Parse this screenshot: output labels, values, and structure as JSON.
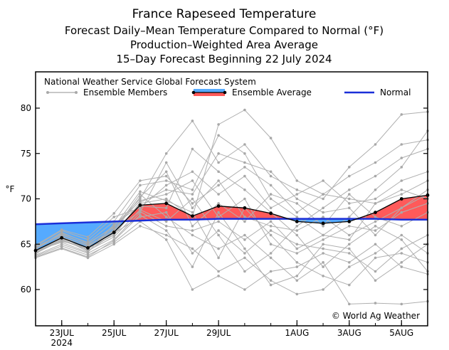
{
  "chart_data": {
    "type": "line",
    "title": "France Rapeseed Temperature",
    "subtitle_lines": [
      "Forecast Daily–Mean Temperature Compared to Normal (°F)",
      "Production–Weighted Area Average",
      "15–Day Forecast Beginning 22 July 2024"
    ],
    "ylabel": "°F",
    "xlabel": "",
    "ylim": [
      56,
      84
    ],
    "xlim": [
      22,
      37
    ],
    "yticks": [
      60,
      65,
      70,
      75,
      80
    ],
    "x_ticks": [
      {
        "x": 23,
        "label": "23JUL",
        "sub": "2024"
      },
      {
        "x": 25,
        "label": "25JUL",
        "sub": ""
      },
      {
        "x": 27,
        "label": "27JUL",
        "sub": ""
      },
      {
        "x": 29,
        "label": "29JUL",
        "sub": ""
      },
      {
        "x": 32,
        "label": "1AUG",
        "sub": ""
      },
      {
        "x": 34,
        "label": "3AUG",
        "sub": ""
      },
      {
        "x": 36,
        "label": "5AUG",
        "sub": ""
      }
    ],
    "legend": {
      "header": "National Weather Service Global Forecast System",
      "members": "Ensemble Members",
      "average": "Ensemble Average",
      "normal": "Normal"
    },
    "copyright": "© World Ag Weather",
    "x": [
      22,
      23,
      24,
      25,
      26,
      27,
      28,
      29,
      30,
      31,
      32,
      33,
      34,
      35,
      36,
      37
    ],
    "series": [
      {
        "name": "Ensemble Average",
        "values": [
          64.3,
          65.7,
          64.6,
          66.3,
          69.3,
          69.5,
          68.1,
          69.2,
          69.0,
          68.4,
          67.5,
          67.3,
          67.5,
          68.5,
          70.0,
          70.4
        ]
      },
      {
        "name": "Normal",
        "values": [
          67.2,
          67.3,
          67.4,
          67.5,
          67.6,
          67.7,
          67.7,
          67.8,
          67.8,
          67.8,
          67.8,
          67.8,
          67.8,
          67.8,
          67.7,
          67.7
        ]
      }
    ],
    "ensemble_members": [
      [
        64.0,
        65.5,
        64.5,
        66.0,
        69.5,
        70.0,
        68.0,
        78.2,
        79.8,
        76.7,
        72.0,
        70.5,
        70.0,
        69.5,
        71.0,
        70.0
      ],
      [
        64.5,
        66.0,
        65.0,
        67.0,
        70.0,
        75.0,
        78.6,
        74.0,
        76.0,
        72.5,
        71.0,
        70.0,
        73.5,
        76.0,
        79.3,
        79.6
      ],
      [
        63.8,
        65.0,
        64.0,
        65.5,
        68.5,
        74.0,
        69.0,
        72.0,
        68.0,
        67.0,
        66.5,
        68.0,
        66.0,
        67.5,
        69.0,
        71.0
      ],
      [
        64.2,
        65.8,
        64.8,
        66.5,
        70.5,
        68.0,
        66.0,
        64.5,
        66.0,
        63.5,
        61.0,
        63.0,
        58.4,
        58.5,
        58.4,
        58.7
      ],
      [
        64.6,
        66.2,
        65.2,
        67.5,
        71.5,
        72.0,
        71.0,
        77.0,
        75.0,
        70.0,
        68.0,
        66.0,
        68.0,
        71.0,
        73.5,
        77.5
      ],
      [
        63.5,
        64.5,
        63.5,
        65.0,
        67.0,
        66.0,
        64.5,
        62.0,
        63.5,
        61.0,
        59.5,
        60.0,
        62.5,
        64.0,
        66.0,
        64.0
      ],
      [
        64.8,
        66.5,
        65.5,
        68.0,
        69.0,
        71.5,
        73.0,
        70.5,
        72.5,
        69.0,
        70.5,
        72.0,
        69.5,
        70.0,
        72.0,
        73.0
      ],
      [
        64.1,
        65.6,
        64.2,
        66.2,
        68.0,
        68.5,
        64.0,
        66.5,
        64.0,
        66.5,
        65.0,
        64.5,
        64.0,
        62.0,
        64.5,
        66.0
      ],
      [
        64.4,
        65.3,
        64.7,
        66.8,
        69.8,
        70.5,
        72.0,
        68.0,
        70.0,
        65.0,
        64.0,
        65.5,
        67.0,
        66.5,
        68.5,
        69.5
      ],
      [
        63.9,
        65.9,
        64.3,
        65.8,
        68.8,
        67.5,
        70.0,
        66.0,
        62.0,
        64.0,
        67.0,
        69.0,
        71.0,
        72.5,
        74.5,
        75.5
      ],
      [
        64.7,
        66.1,
        64.9,
        66.4,
        70.2,
        73.0,
        67.0,
        69.5,
        67.5,
        70.5,
        69.5,
        67.0,
        70.5,
        68.0,
        67.0,
        68.5
      ],
      [
        64.3,
        65.2,
        64.1,
        67.2,
        69.2,
        69.0,
        75.5,
        73.0,
        71.0,
        68.5,
        66.0,
        62.5,
        65.0,
        67.0,
        65.5,
        62.0
      ],
      [
        63.7,
        64.8,
        63.8,
        65.2,
        67.5,
        65.5,
        60.0,
        61.5,
        60.0,
        62.0,
        62.5,
        64.0,
        63.0,
        65.0,
        62.5,
        61.7
      ],
      [
        64.9,
        66.6,
        65.8,
        68.4,
        72.0,
        72.5,
        69.5,
        71.5,
        73.5,
        71.5,
        68.5,
        70.5,
        72.5,
        74.0,
        76.0,
        76.5
      ],
      [
        64.0,
        65.4,
        64.4,
        66.6,
        68.6,
        67.0,
        66.5,
        67.5,
        65.5,
        67.5,
        64.5,
        66.0,
        65.5,
        69.5,
        70.5,
        72.0
      ],
      [
        64.2,
        65.7,
        64.6,
        66.0,
        69.6,
        71.0,
        70.5,
        75.0,
        74.0,
        73.0,
        70.0,
        68.5,
        69.0,
        66.0,
        69.0,
        70.5
      ],
      [
        64.5,
        66.3,
        65.1,
        66.9,
        70.8,
        69.8,
        68.5,
        63.5,
        69.0,
        66.0,
        63.0,
        61.5,
        60.5,
        63.5,
        64.0,
        63.0
      ],
      [
        63.6,
        64.6,
        63.6,
        65.4,
        68.2,
        66.5,
        62.5,
        68.5,
        64.5,
        60.5,
        61.5,
        65.0,
        64.5,
        61.0,
        63.0,
        65.0
      ]
    ]
  }
}
